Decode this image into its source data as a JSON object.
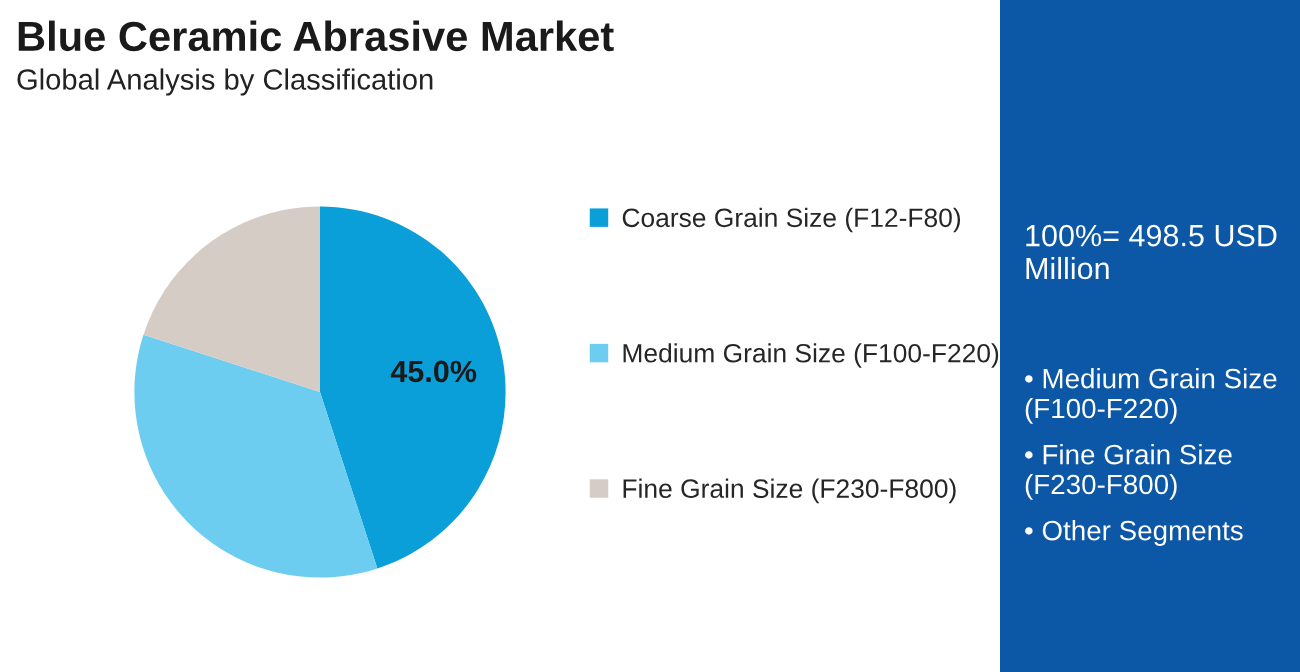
{
  "chart_data": {
    "type": "pie",
    "title": "Blue Ceramic Abrasive Market",
    "subtitle": "Global Analysis by Classification",
    "categories": [
      "Coarse Grain Size (F12-F80)",
      "Medium Grain Size (F100-F220)",
      "Fine Grain Size (F230-F800)"
    ],
    "values": [
      45.0,
      35.0,
      20.0
    ],
    "colors": [
      "#0a9fd8",
      "#6ccdf1",
      "#d6ccc6"
    ],
    "value_labels": [
      "45.0%",
      null,
      null
    ],
    "legend": "right",
    "annotations": [
      "100%= 498.5 USD Million",
      "• Medium Grain Size (F100-F220)",
      "• Fine Grain Size (F230-F800)",
      "• Other Segments"
    ]
  }
}
